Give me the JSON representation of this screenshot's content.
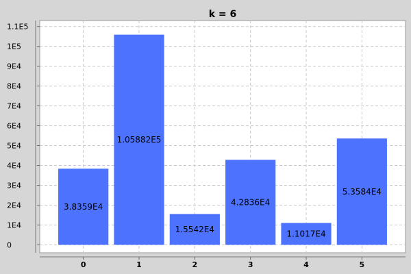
{
  "chart_data": {
    "type": "bar",
    "title": "k = 6",
    "xlabel": "",
    "ylabel": "",
    "categories": [
      "0",
      "1",
      "2",
      "3",
      "4",
      "5"
    ],
    "values": [
      38359,
      105882,
      15542,
      42836,
      11017,
      53584
    ],
    "value_labels": [
      "3.8359E4",
      "1.05882E5",
      "1.5542E4",
      "4.2836E4",
      "1.1017E4",
      "5.3584E4"
    ],
    "y_ticks": [
      0,
      10000,
      20000,
      30000,
      40000,
      50000,
      60000,
      70000,
      80000,
      90000,
      100000,
      110000
    ],
    "y_tick_labels": [
      "0",
      "1E4",
      "2E4",
      "3E4",
      "4E4",
      "5E4",
      "6E4",
      "7E4",
      "8E4",
      "9E4",
      "1E5",
      "1.1E5"
    ],
    "ylim": [
      -4000,
      113000
    ],
    "grid": true,
    "legend": "none",
    "colors": {
      "bar": "#4c72fe",
      "plot_background": "#ffffff",
      "page_background": "#d6d6d6",
      "grid": "#c8c8c8",
      "text": "#000000"
    }
  }
}
